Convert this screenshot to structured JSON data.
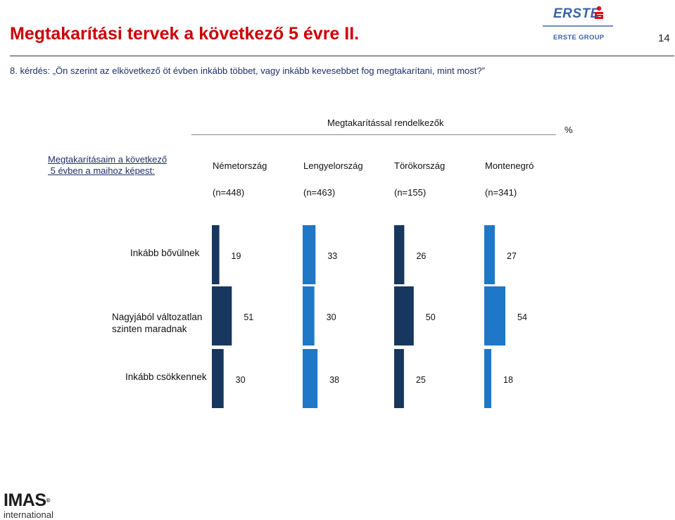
{
  "header": {
    "title": "Megtakarítási tervek a következő 5 évre II.",
    "page_number": "14",
    "question": "8. kérdés: „Ön szerint az elkövetkező öt évben inkább többet, vagy inkább kevesebbet fog megtakarítani, mint most?”"
  },
  "logos": {
    "erste_word": "ERSTE",
    "erste_group": "ERSTE GROUP",
    "imas_word": "IMAS",
    "imas_reg": "®",
    "imas_sub": "international"
  },
  "colors": {
    "title": "#cc0000",
    "dark_navy": "#17375e",
    "bright_blue": "#1f77c8",
    "erste_blue": "#3a63a8",
    "erste_red": "#e30613"
  },
  "chart_data": {
    "type": "bar",
    "group_header": "Megtakarítással rendelkezők",
    "unit": "%",
    "row_header": "Megtakarításaim a következő\n 5 évben a maihoz képest:",
    "categories": [
      "Inkább bővülnek",
      "Nagyjából változatlan\nszinten maradnak",
      "Inkább csökkennek"
    ],
    "series": [
      {
        "name": "Németország",
        "n": "(n=448)",
        "color": "#17375e",
        "values": [
          19,
          51,
          30
        ]
      },
      {
        "name": "Lengyelország",
        "n": "(n=463)",
        "color": "#1f77c8",
        "values": [
          33,
          30,
          38
        ]
      },
      {
        "name": "Törökország",
        "n": "(n=155)",
        "color": "#17375e",
        "values": [
          26,
          50,
          25
        ]
      },
      {
        "name": "Montenegró",
        "n": "(n=341)",
        "color": "#1f77c8",
        "values": [
          27,
          54,
          18
        ]
      }
    ]
  }
}
